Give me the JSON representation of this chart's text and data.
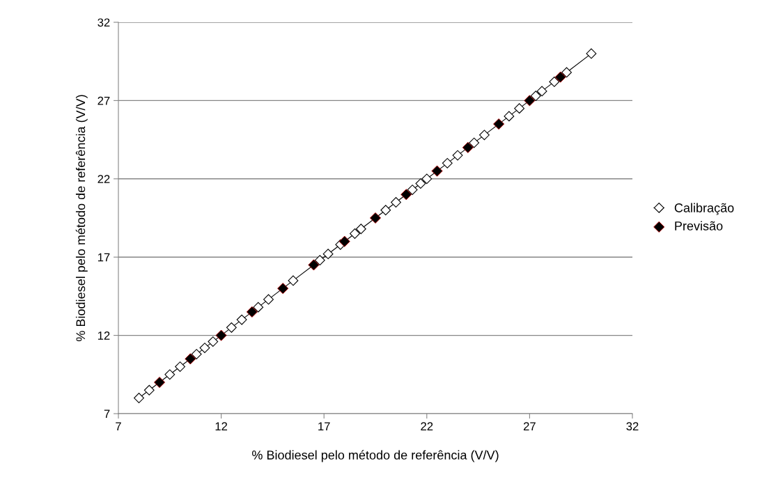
{
  "chart_data": {
    "type": "scatter",
    "xlabel": "% Biodiesel pelo método de referência (V/V)",
    "ylabel": "% Biodiesel pelo método de referência (V/V)",
    "xlim": [
      7,
      32
    ],
    "ylim": [
      7,
      32
    ],
    "xticks": [
      7,
      12,
      17,
      22,
      27,
      32
    ],
    "yticks": [
      7,
      12,
      17,
      22,
      27,
      32
    ],
    "grid": "y",
    "legend": "right",
    "marker": "diamond",
    "series": [
      {
        "name": "Calibração",
        "type": "line",
        "line_style": "solid",
        "color": "#ffffff",
        "x": [
          8.0,
          8.5,
          9.5,
          10.0,
          10.8,
          11.2,
          11.6,
          12.5,
          13.0,
          13.8,
          14.3,
          15.5,
          16.8,
          17.2,
          17.8,
          18.5,
          18.8,
          20.0,
          20.5,
          21.3,
          21.7,
          22.0,
          23.0,
          23.5,
          24.3,
          24.8,
          26.0,
          26.5,
          27.3,
          27.6,
          28.2,
          28.8,
          30.0
        ],
        "values": [
          8.0,
          8.5,
          9.5,
          10.0,
          10.8,
          11.2,
          11.6,
          12.5,
          13.0,
          13.8,
          14.3,
          15.5,
          16.8,
          17.2,
          17.8,
          18.5,
          18.8,
          20.0,
          20.5,
          21.3,
          21.7,
          22.0,
          23.0,
          23.5,
          24.3,
          24.8,
          26.0,
          26.5,
          27.3,
          27.6,
          28.2,
          28.8,
          30.0
        ]
      },
      {
        "name": "Previsão",
        "color": "#000000",
        "x": [
          9,
          10.5,
          12,
          13.5,
          15,
          16.5,
          18,
          19.5,
          21,
          22.5,
          24,
          25.5,
          27,
          28.5
        ],
        "values": [
          9,
          10.5,
          12,
          13.5,
          15,
          16.5,
          18,
          19.5,
          21,
          22.5,
          24,
          25.5,
          27,
          28.5
        ]
      }
    ]
  }
}
